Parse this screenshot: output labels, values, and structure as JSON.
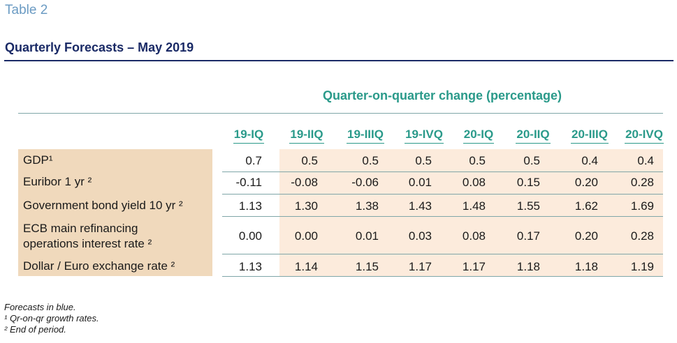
{
  "table_label": "Table 2",
  "title": "Quarterly Forecasts – May 2019",
  "group_header": "Quarter-on-quarter change (percentage)",
  "columns": [
    "19-IQ",
    "19-IIQ",
    "19-IIIQ",
    "19-IVQ",
    "20-IQ",
    "20-IIQ",
    "20-IIIQ",
    "20-IVQ"
  ],
  "rows": [
    {
      "label": "GDP¹",
      "values": [
        "0.7",
        "0.5",
        "0.5",
        "0.5",
        "0.5",
        "0.5",
        "0.4",
        "0.4"
      ]
    },
    {
      "label": "Euribor 1 yr ²",
      "values": [
        "-0.11",
        "-0.08",
        "-0.06",
        "0.01",
        "0.08",
        "0.15",
        "0.20",
        "0.28"
      ]
    },
    {
      "label": "Government bond yield 10 yr ²",
      "values": [
        "1.13",
        "1.30",
        "1.38",
        "1.43",
        "1.48",
        "1.55",
        "1.62",
        "1.69"
      ]
    },
    {
      "label_line1": "ECB main refinancing",
      "label_line2": "operations interest rate ²",
      "values": [
        "0.00",
        "0.00",
        "0.01",
        "0.03",
        "0.08",
        "0.17",
        "0.20",
        "0.28"
      ]
    },
    {
      "label": "Dollar / Euro exchange rate ²",
      "values": [
        "1.13",
        "1.14",
        "1.15",
        "1.17",
        "1.17",
        "1.18",
        "1.18",
        "1.19"
      ]
    }
  ],
  "notes": {
    "forecasts": "Forecasts in blue.",
    "note1": "¹  Qr-on-qr growth rates.",
    "note2": "²  End of period."
  },
  "colors": {
    "title": "#1a2a66",
    "teal_header": "#2a9a8a",
    "label_bg": "#f0d9bc",
    "data_bg": "#fcebdc"
  }
}
